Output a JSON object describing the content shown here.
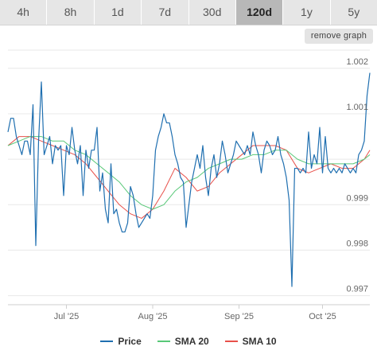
{
  "tabs": [
    {
      "label": "4h",
      "active": false
    },
    {
      "label": "8h",
      "active": false
    },
    {
      "label": "1d",
      "active": false
    },
    {
      "label": "7d",
      "active": false
    },
    {
      "label": "30d",
      "active": false
    },
    {
      "label": "120d",
      "active": true
    },
    {
      "label": "1y",
      "active": false
    },
    {
      "label": "5y",
      "active": false
    }
  ],
  "remove_graph_label": "remove graph",
  "colors": {
    "price": "#1f6fb0",
    "sma20": "#58c878",
    "sma10": "#e8504a",
    "grid": "#e8e8e8"
  },
  "chart_data": {
    "type": "line",
    "title": "",
    "xlabel": "",
    "ylabel": "",
    "ylim": [
      0.9968,
      1.0024
    ],
    "yticks": [
      0.997,
      0.998,
      0.999,
      1.0,
      1.001,
      1.002
    ],
    "ytick_labels": [
      "0.997",
      "0.998",
      "0.999",
      "",
      "1.001",
      "1.002"
    ],
    "x_start": "2025-06-10",
    "x_end": "2025-10-18",
    "xticks": [
      {
        "date": "2025-07-01",
        "label": "Jul '25"
      },
      {
        "date": "2025-08-01",
        "label": "Aug '25"
      },
      {
        "date": "2025-09-01",
        "label": "Sep '25"
      },
      {
        "date": "2025-10-01",
        "label": "Oct '25"
      }
    ],
    "grid": true,
    "legend_position": "bottom-center",
    "series": [
      {
        "name": "Price",
        "key": "price",
        "points": [
          [
            "2025-06-10",
            1.0006
          ],
          [
            "2025-06-11",
            1.0009
          ],
          [
            "2025-06-12",
            1.0009
          ],
          [
            "2025-06-13",
            1.0005
          ],
          [
            "2025-06-14",
            1.0003
          ],
          [
            "2025-06-15",
            1.0001
          ],
          [
            "2025-06-16",
            1.0004
          ],
          [
            "2025-06-17",
            1.0004
          ],
          [
            "2025-06-18",
            1.0001
          ],
          [
            "2025-06-19",
            1.0012
          ],
          [
            "2025-06-20",
            0.9981
          ],
          [
            "2025-06-21",
            1.0004
          ],
          [
            "2025-06-22",
            1.0017
          ],
          [
            "2025-06-23",
            1.0001
          ],
          [
            "2025-06-24",
            1.0003
          ],
          [
            "2025-06-25",
            1.0005
          ],
          [
            "2025-06-26",
            0.9999
          ],
          [
            "2025-06-27",
            1.0003
          ],
          [
            "2025-06-28",
            1.0002
          ],
          [
            "2025-06-29",
            1.0003
          ],
          [
            "2025-06-30",
            0.9992
          ],
          [
            "2025-07-01",
            1.0003
          ],
          [
            "2025-07-02",
            1.0001
          ],
          [
            "2025-07-03",
            1.0007
          ],
          [
            "2025-07-04",
            1.0002
          ],
          [
            "2025-07-05",
            0.9999
          ],
          [
            "2025-07-06",
            1.0003
          ],
          [
            "2025-07-07",
            0.9992
          ],
          [
            "2025-07-08",
            1.0002
          ],
          [
            "2025-07-09",
            0.9998
          ],
          [
            "2025-07-10",
            1.0002
          ],
          [
            "2025-07-11",
            1.0002
          ],
          [
            "2025-07-12",
            1.0007
          ],
          [
            "2025-07-13",
            0.9993
          ],
          [
            "2025-07-14",
            0.9997
          ],
          [
            "2025-07-15",
            0.9989
          ],
          [
            "2025-07-16",
            0.9986
          ],
          [
            "2025-07-17",
            0.9999
          ],
          [
            "2025-07-18",
            0.9988
          ],
          [
            "2025-07-19",
            0.9989
          ],
          [
            "2025-07-20",
            0.9986
          ],
          [
            "2025-07-21",
            0.9984
          ],
          [
            "2025-07-22",
            0.9984
          ],
          [
            "2025-07-23",
            0.9986
          ],
          [
            "2025-07-24",
            0.9994
          ],
          [
            "2025-07-25",
            0.9992
          ],
          [
            "2025-07-26",
            0.9988
          ],
          [
            "2025-07-27",
            0.9985
          ],
          [
            "2025-07-28",
            0.9986
          ],
          [
            "2025-07-29",
            0.9987
          ],
          [
            "2025-07-30",
            0.9988
          ],
          [
            "2025-07-31",
            0.9987
          ],
          [
            "2025-08-01",
            0.9992
          ],
          [
            "2025-08-02",
            1.0002
          ],
          [
            "2025-08-03",
            1.0005
          ],
          [
            "2025-08-04",
            1.0007
          ],
          [
            "2025-08-05",
            1.001
          ],
          [
            "2025-08-06",
            1.0008
          ],
          [
            "2025-08-07",
            1.0008
          ],
          [
            "2025-08-08",
            1.0005
          ],
          [
            "2025-08-09",
            1.0001
          ],
          [
            "2025-08-10",
            0.9999
          ],
          [
            "2025-08-11",
            0.9996
          ],
          [
            "2025-08-12",
            0.9995
          ],
          [
            "2025-08-13",
            0.9985
          ],
          [
            "2025-08-14",
            0.999
          ],
          [
            "2025-08-15",
            0.9995
          ],
          [
            "2025-08-16",
            0.9998
          ],
          [
            "2025-08-17",
            1.0001
          ],
          [
            "2025-08-18",
            0.9998
          ],
          [
            "2025-08-19",
            1.0003
          ],
          [
            "2025-08-20",
            0.9996
          ],
          [
            "2025-08-21",
            0.9992
          ],
          [
            "2025-08-22",
            0.9998
          ],
          [
            "2025-08-23",
            1.0001
          ],
          [
            "2025-08-24",
            0.9996
          ],
          [
            "2025-08-25",
            0.9999
          ],
          [
            "2025-08-26",
            1.0004
          ],
          [
            "2025-08-27",
            1.0001
          ],
          [
            "2025-08-28",
            0.9997
          ],
          [
            "2025-08-29",
            0.9999
          ],
          [
            "2025-08-30",
            1.0001
          ],
          [
            "2025-08-31",
            1.0004
          ],
          [
            "2025-09-01",
            1.0003
          ],
          [
            "2025-09-02",
            1.0002
          ],
          [
            "2025-09-03",
            1.0001
          ],
          [
            "2025-09-04",
            1.0003
          ],
          [
            "2025-09-05",
            1.0001
          ],
          [
            "2025-09-06",
            1.0006
          ],
          [
            "2025-09-07",
            1.0003
          ],
          [
            "2025-09-08",
            1.0001
          ],
          [
            "2025-09-09",
            0.9997
          ],
          [
            "2025-09-10",
            1.0002
          ],
          [
            "2025-09-11",
            1.0004
          ],
          [
            "2025-09-12",
            1.0003
          ],
          [
            "2025-09-13",
            1.0001
          ],
          [
            "2025-09-14",
            1.0002
          ],
          [
            "2025-09-15",
            1.0005
          ],
          [
            "2025-09-16",
            1.0001
          ],
          [
            "2025-09-17",
            0.9999
          ],
          [
            "2025-09-18",
            0.9996
          ],
          [
            "2025-09-19",
            0.9991
          ],
          [
            "2025-09-20",
            0.9972
          ],
          [
            "2025-09-21",
            0.9998
          ],
          [
            "2025-09-22",
            0.9998
          ],
          [
            "2025-09-23",
            0.9997
          ],
          [
            "2025-09-24",
            0.9998
          ],
          [
            "2025-09-25",
            0.9997
          ],
          [
            "2025-09-26",
            1.0006
          ],
          [
            "2025-09-27",
            0.9998
          ],
          [
            "2025-09-28",
            1.0001
          ],
          [
            "2025-09-29",
            0.9999
          ],
          [
            "2025-09-30",
            1.0007
          ],
          [
            "2025-10-01",
            0.9997
          ],
          [
            "2025-10-02",
            1.0005
          ],
          [
            "2025-10-03",
            0.9998
          ],
          [
            "2025-10-04",
            0.9997
          ],
          [
            "2025-10-05",
            0.9998
          ],
          [
            "2025-10-06",
            0.9997
          ],
          [
            "2025-10-07",
            0.9998
          ],
          [
            "2025-10-08",
            0.9997
          ],
          [
            "2025-10-09",
            0.9999
          ],
          [
            "2025-10-10",
            0.9998
          ],
          [
            "2025-10-11",
            0.9997
          ],
          [
            "2025-10-12",
            0.9998
          ],
          [
            "2025-10-13",
            0.9997
          ],
          [
            "2025-10-14",
            1.0001
          ],
          [
            "2025-10-15",
            1.0002
          ],
          [
            "2025-10-16",
            1.0004
          ],
          [
            "2025-10-17",
            1.0014
          ],
          [
            "2025-10-18",
            1.0019
          ]
        ]
      },
      {
        "name": "SMA 20",
        "key": "sma20",
        "points": [
          [
            "2025-06-10",
            1.0003
          ],
          [
            "2025-06-14",
            1.0004
          ],
          [
            "2025-06-18",
            1.0005
          ],
          [
            "2025-06-22",
            1.0005
          ],
          [
            "2025-06-26",
            1.0004
          ],
          [
            "2025-06-30",
            1.0004
          ],
          [
            "2025-07-04",
            1.0002
          ],
          [
            "2025-07-08",
            1.0001
          ],
          [
            "2025-07-12",
            0.9999
          ],
          [
            "2025-07-16",
            0.9997
          ],
          [
            "2025-07-20",
            0.9995
          ],
          [
            "2025-07-24",
            0.9992
          ],
          [
            "2025-07-28",
            0.999
          ],
          [
            "2025-08-01",
            0.9989
          ],
          [
            "2025-08-05",
            0.999
          ],
          [
            "2025-08-09",
            0.9993
          ],
          [
            "2025-08-13",
            0.9995
          ],
          [
            "2025-08-17",
            0.9996
          ],
          [
            "2025-08-21",
            0.9998
          ],
          [
            "2025-08-25",
            0.9999
          ],
          [
            "2025-08-29",
            1.0
          ],
          [
            "2025-09-02",
            1.0
          ],
          [
            "2025-09-06",
            1.0001
          ],
          [
            "2025-09-10",
            1.0001
          ],
          [
            "2025-09-14",
            1.0002
          ],
          [
            "2025-09-18",
            1.0002
          ],
          [
            "2025-09-22",
            1.0
          ],
          [
            "2025-09-26",
            0.9999
          ],
          [
            "2025-09-30",
            0.9999
          ],
          [
            "2025-10-04",
            0.9999
          ],
          [
            "2025-10-08",
            0.9999
          ],
          [
            "2025-10-12",
            0.9999
          ],
          [
            "2025-10-16",
            1.0
          ],
          [
            "2025-10-18",
            1.0001
          ]
        ]
      },
      {
        "name": "SMA 10",
        "key": "sma10",
        "points": [
          [
            "2025-06-10",
            1.0003
          ],
          [
            "2025-06-14",
            1.0005
          ],
          [
            "2025-06-18",
            1.0005
          ],
          [
            "2025-06-22",
            1.0004
          ],
          [
            "2025-06-26",
            1.0003
          ],
          [
            "2025-06-30",
            1.0002
          ],
          [
            "2025-07-04",
            1.0001
          ],
          [
            "2025-07-08",
            0.9999
          ],
          [
            "2025-07-12",
            0.9996
          ],
          [
            "2025-07-16",
            0.9993
          ],
          [
            "2025-07-20",
            0.999
          ],
          [
            "2025-07-24",
            0.9988
          ],
          [
            "2025-07-28",
            0.9987
          ],
          [
            "2025-08-01",
            0.9989
          ],
          [
            "2025-08-05",
            0.9993
          ],
          [
            "2025-08-09",
            0.9998
          ],
          [
            "2025-08-13",
            0.9996
          ],
          [
            "2025-08-17",
            0.9993
          ],
          [
            "2025-08-21",
            0.9994
          ],
          [
            "2025-08-25",
            0.9997
          ],
          [
            "2025-08-29",
            0.9999
          ],
          [
            "2025-09-02",
            1.0001
          ],
          [
            "2025-09-06",
            1.0003
          ],
          [
            "2025-09-10",
            1.0003
          ],
          [
            "2025-09-14",
            1.0003
          ],
          [
            "2025-09-18",
            1.0002
          ],
          [
            "2025-09-22",
            0.9998
          ],
          [
            "2025-09-26",
            0.9997
          ],
          [
            "2025-09-30",
            0.9998
          ],
          [
            "2025-10-04",
            0.9999
          ],
          [
            "2025-10-08",
            0.9998
          ],
          [
            "2025-10-12",
            0.9998
          ],
          [
            "2025-10-16",
            1.0
          ],
          [
            "2025-10-18",
            1.0002
          ]
        ]
      }
    ]
  }
}
